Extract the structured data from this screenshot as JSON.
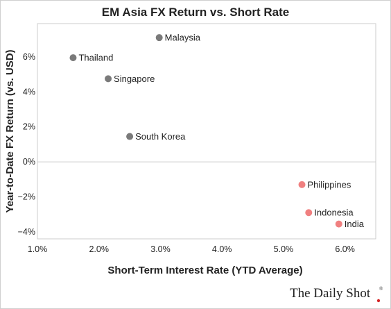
{
  "chart_data": {
    "type": "scatter",
    "title": "EM Asia FX Return vs. Short Rate",
    "xlabel": "Short-Term Interest Rate (YTD Average)",
    "ylabel": "Year-to-Date FX Return (vs. USD)",
    "xlim": [
      1.0,
      6.5
    ],
    "ylim": [
      -4.4,
      7.9
    ],
    "x_ticks": [
      1.0,
      2.0,
      3.0,
      4.0,
      5.0,
      6.0
    ],
    "x_tick_labels": [
      "1.0%",
      "2.0%",
      "3.0%",
      "4.0%",
      "5.0%",
      "6.0%"
    ],
    "y_ticks": [
      6,
      4,
      2,
      0,
      -2,
      -4
    ],
    "y_tick_labels": [
      "6%",
      "4%",
      "2%",
      "0%",
      "−2%",
      "−4%"
    ],
    "grid": false,
    "zero_line": true,
    "points": [
      {
        "label": "Malaysia",
        "x": 2.98,
        "y": 7.1,
        "color": "#7a7a7a"
      },
      {
        "label": "Thailand",
        "x": 1.58,
        "y": 5.95,
        "color": "#7a7a7a"
      },
      {
        "label": "Singapore",
        "x": 2.15,
        "y": 4.75,
        "color": "#7a7a7a"
      },
      {
        "label": "South Korea",
        "x": 2.5,
        "y": 1.45,
        "color": "#7a7a7a"
      },
      {
        "label": "Philippines",
        "x": 5.3,
        "y": -1.3,
        "color": "#f08080"
      },
      {
        "label": "Indonesia",
        "x": 5.41,
        "y": -2.9,
        "color": "#f08080"
      },
      {
        "label": "India",
        "x": 5.9,
        "y": -3.55,
        "color": "#f08080"
      }
    ]
  },
  "branding": {
    "text": "The Daily Shot",
    "reg_mark": "®"
  }
}
